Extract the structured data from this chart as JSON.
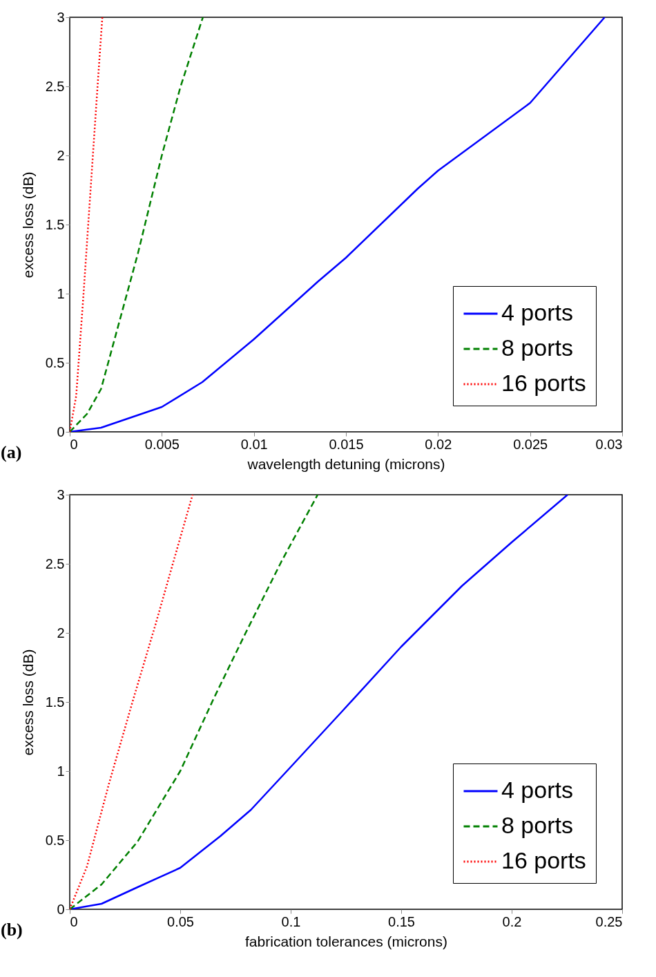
{
  "chart_data": [
    {
      "type": "line",
      "title": "(a)",
      "xlabel": "wavelength detuning (microns)",
      "ylabel": "excess loss (dB)",
      "xlim": [
        0,
        0.03
      ],
      "xticks": [
        0,
        0.005,
        0.01,
        0.015,
        0.02,
        0.025,
        0.03
      ],
      "ylim": [
        0,
        3
      ],
      "yticks": [
        0,
        0.5,
        1,
        1.5,
        2,
        2.5,
        3
      ],
      "legend": "bottom right",
      "grid": false,
      "series": [
        {
          "name": "4 ports",
          "color": "#0000ff",
          "line_style": "solid",
          "x": [
            0,
            0.0017,
            0.005,
            0.0072,
            0.01,
            0.0135,
            0.015,
            0.0189,
            0.02,
            0.025,
            0.02905
          ],
          "values": [
            0,
            0.03,
            0.18,
            0.36,
            0.67,
            1.09,
            1.26,
            1.76,
            1.89,
            2.38,
            3
          ]
        },
        {
          "name": "8 ports",
          "color": "#008000",
          "line_style": "dashed",
          "x": [
            0,
            0.00094,
            0.0017,
            0.0027,
            0.0037,
            0.005,
            0.006,
            0.00723
          ],
          "values": [
            0,
            0.13,
            0.31,
            0.8,
            1.29,
            2.0,
            2.49,
            3
          ]
        },
        {
          "name": "16 ports",
          "color": "#ff0000",
          "line_style": "dotted",
          "x": [
            0,
            0.00035,
            0.00074,
            0.00113,
            0.00152,
            0.00177
          ],
          "values": [
            0,
            0.26,
            0.98,
            1.75,
            2.52,
            3
          ]
        }
      ]
    },
    {
      "type": "line",
      "title": "(b)",
      "xlabel": "fabrication tolerances (microns)",
      "ylabel": "excess loss (dB)",
      "xlim": [
        0,
        0.25
      ],
      "xticks": [
        0,
        0.05,
        0.1,
        0.15,
        0.2,
        0.25
      ],
      "ylim": [
        0,
        3
      ],
      "yticks": [
        0,
        0.5,
        1,
        1.5,
        2,
        2.5,
        3
      ],
      "legend": "bottom right",
      "grid": false,
      "series": [
        {
          "name": "4 ports",
          "color": "#0000ff",
          "line_style": "solid",
          "x": [
            0,
            0.0144,
            0.0307,
            0.05,
            0.0682,
            0.082,
            0.1,
            0.1237,
            0.15,
            0.1775,
            0.2003,
            0.2253
          ],
          "values": [
            0,
            0.04,
            0.16,
            0.3,
            0.53,
            0.72,
            1.03,
            1.44,
            1.9,
            2.34,
            2.66,
            3
          ]
        },
        {
          "name": "8 ports",
          "color": "#008000",
          "line_style": "dashed",
          "x": [
            0,
            0.0144,
            0.0307,
            0.05,
            0.065,
            0.0796,
            0.0959,
            0.1122
          ],
          "values": [
            0,
            0.18,
            0.49,
            1.0,
            1.52,
            2.0,
            2.52,
            3
          ]
        },
        {
          "name": "16 ports",
          "color": "#ff0000",
          "line_style": "dotted",
          "x": [
            0,
            0.0078,
            0.0176,
            0.0282,
            0.0388,
            0.047,
            0.0556
          ],
          "values": [
            0,
            0.31,
            0.9,
            1.49,
            2.06,
            2.52,
            3
          ]
        }
      ]
    }
  ]
}
